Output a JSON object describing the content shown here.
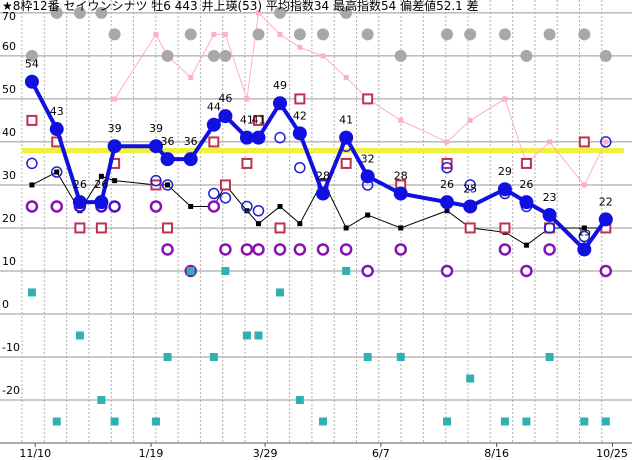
{
  "chart_data": {
    "type": "line",
    "title": "★8枠12番 セイウンシナツ 牡6 443 井上瑛(53) 平均指数34 最高指数54 偏差値52.1 差",
    "x": [
      -2,
      13,
      27,
      40,
      48,
      73,
      80,
      94,
      108,
      115,
      128,
      135,
      148,
      160,
      174,
      188,
      201,
      221,
      249,
      263,
      284,
      297,
      311,
      332,
      345
    ],
    "xlim": [
      -8,
      356
    ],
    "xticks": [
      {
        "value": 0,
        "label": "11/10"
      },
      {
        "value": 70,
        "label": "1/19"
      },
      {
        "value": 139,
        "label": "3/29"
      },
      {
        "value": 209,
        "label": "6/7"
      },
      {
        "value": 279,
        "label": "8/16"
      },
      {
        "value": 349,
        "label": "10/25"
      }
    ],
    "ylim": [
      -30,
      73
    ],
    "yticks": [
      -20,
      -10,
      0,
      10,
      20,
      30,
      40,
      50,
      60,
      70
    ],
    "reference_line": 38,
    "reference_color": "#f0f040",
    "series": [
      {
        "marker": "line-small",
        "color": "#000000",
        "values": [
          30,
          33,
          24,
          32,
          31,
          30,
          30,
          25,
          25,
          30,
          24,
          21,
          25,
          21,
          31,
          20,
          23,
          20,
          24,
          20,
          19,
          16,
          20,
          20,
          20
        ]
      },
      {
        "marker": "line-small",
        "color": "#ffb0c0",
        "values": [
          null,
          null,
          null,
          null,
          50,
          65,
          60,
          55,
          65,
          65,
          50,
          70,
          65,
          62,
          60,
          55,
          50,
          45,
          40,
          45,
          50,
          35,
          40,
          30,
          40
        ]
      },
      {
        "marker": "circle-filled",
        "color": "#a8a8a8",
        "values": [
          60,
          70,
          70,
          70,
          65,
          null,
          60,
          65,
          60,
          60,
          null,
          65,
          70,
          65,
          65,
          70,
          65,
          60,
          65,
          65,
          65,
          60,
          65,
          65,
          60
        ]
      },
      {
        "marker": "ring",
        "color": "#8a10b0",
        "values": [
          25,
          25,
          25,
          25,
          25,
          25,
          15,
          10,
          25,
          15,
          15,
          15,
          15,
          15,
          15,
          15,
          10,
          15,
          10,
          null,
          15,
          10,
          15,
          15,
          10
        ]
      },
      {
        "marker": "square-filled",
        "color": "#30b0b0",
        "values": [
          5,
          -25,
          -5,
          -20,
          -25,
          -25,
          -10,
          10,
          -10,
          10,
          -5,
          -5,
          5,
          -20,
          -25,
          10,
          -10,
          -10,
          -25,
          -15,
          -25,
          -25,
          -10,
          -25,
          -25
        ]
      },
      {
        "marker": "square-boxed",
        "color": "#c03050",
        "values": [
          45,
          40,
          20,
          20,
          35,
          30,
          20,
          null,
          40,
          30,
          35,
          45,
          20,
          50,
          30,
          35,
          50,
          30,
          35,
          20,
          20,
          35,
          20,
          40,
          20
        ]
      },
      {
        "marker": "circle-open",
        "color": "#2020d0",
        "values": [
          35,
          33,
          25,
          25,
          25,
          31,
          30,
          36,
          28,
          27,
          25,
          24,
          41,
          34,
          30,
          39,
          30,
          28,
          34,
          30,
          28,
          25,
          20,
          18,
          40
        ]
      },
      {
        "marker": "main",
        "color": "#1010e0",
        "values": [
          54,
          43,
          26,
          26,
          39,
          39,
          36,
          36,
          44,
          46,
          41,
          41,
          49,
          42,
          28,
          41,
          32,
          28,
          26,
          25,
          29,
          26,
          23,
          15,
          22
        ]
      }
    ]
  }
}
